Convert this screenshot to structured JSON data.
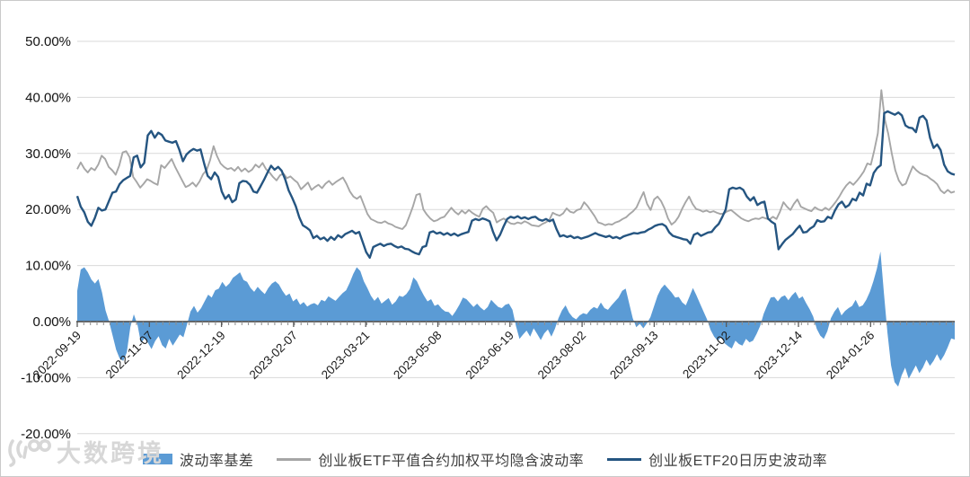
{
  "watermark": {
    "logo_text": "100",
    "text": "大数跨境"
  },
  "chart_data": {
    "type": "combo",
    "title": "",
    "unit": "percent",
    "grid": true,
    "legend_position": "bottom",
    "y_axis": {
      "ticks": [
        "50.00%",
        "40.00%",
        "30.00%",
        "20.00%",
        "10.00%",
        "0.00%",
        "-10.00%",
        "-20.00%"
      ],
      "values": [
        50,
        40,
        30,
        20,
        10,
        0,
        -10,
        -20
      ],
      "max": 50,
      "min": -20
    },
    "x_axis": {
      "tick_labels": [
        "2022-09-19",
        "2022-11-07",
        "2022-12-19",
        "2023-02-07",
        "2023-03-21",
        "2023-05-08",
        "2023-06-19",
        "2023-08-02",
        "2023-09-13",
        "2023-11-02",
        "2023-12-14",
        "2024-01-26"
      ]
    },
    "series": [
      {
        "name": "波动率基差",
        "type": "area",
        "color": "#5B9BD5",
        "values": [
          5.5,
          9.3,
          9.7,
          8.8,
          7.5,
          6.8,
          7.6,
          5.2,
          2.0,
          0.0,
          -2.5,
          -5.0,
          -6.6,
          -7.0,
          -5.5,
          -1.0,
          1.3,
          -0.5,
          -3.8,
          -3.0,
          -3.8,
          -4.9,
          -3.5,
          -2.6,
          -4.2,
          -4.8,
          -3.1,
          -4.3,
          -3.3,
          -2.3,
          -2.8,
          -0.6,
          1.8,
          2.8,
          1.6,
          2.4,
          3.6,
          4.8,
          4.3,
          5.6,
          5.9,
          7.1,
          6.2,
          6.8,
          7.8,
          8.3,
          8.8,
          7.4,
          7.1,
          6.0,
          5.3,
          6.2,
          5.5,
          4.9,
          6.0,
          6.8,
          7.2,
          6.6,
          5.5,
          4.6,
          5.0,
          3.6,
          4.1,
          3.0,
          3.5,
          2.7,
          3.1,
          3.3,
          2.9,
          3.9,
          3.6,
          4.5,
          4.1,
          3.7,
          4.4,
          5.1,
          5.6,
          6.9,
          8.5,
          9.7,
          9.0,
          7.2,
          6.0,
          4.6,
          3.7,
          4.4,
          3.2,
          3.7,
          4.2,
          3.0,
          3.6,
          4.6,
          4.4,
          4.9,
          5.8,
          7.9,
          7.2,
          5.8,
          4.6,
          3.6,
          4.0,
          2.8,
          3.1,
          2.3,
          1.8,
          1.7,
          1.0,
          1.9,
          3.0,
          4.3,
          4.0,
          3.3,
          2.6,
          3.2,
          2.5,
          2.0,
          2.6,
          3.9,
          3.2,
          2.6,
          2.4,
          3.0,
          3.2,
          2.1,
          -0.8,
          -3.1,
          -2.3,
          -1.6,
          -2.7,
          -1.2,
          -2.2,
          -3.3,
          -2.1,
          -1.4,
          -2.7,
          -1.3,
          0.6,
          2.0,
          2.9,
          1.6,
          0.8,
          0.4,
          1.1,
          1.5,
          1.3,
          2.1,
          2.6,
          2.3,
          3.4,
          2.4,
          2.1,
          2.9,
          3.6,
          4.3,
          5.5,
          5.9,
          3.2,
          0.6,
          -1.0,
          -0.4,
          -1.2,
          -0.3,
          0.8,
          2.7,
          4.6,
          5.9,
          6.6,
          5.9,
          5.2,
          4.3,
          4.4,
          3.4,
          2.9,
          4.4,
          6.0,
          4.7,
          3.2,
          1.8,
          0.4,
          -1.5,
          -2.7,
          -3.4,
          -2.8,
          -3.9,
          -4.4,
          -4.8,
          -3.4,
          -4.0,
          -4.3,
          -3.1,
          -3.7,
          -3.4,
          -2.2,
          -0.8,
          1.4,
          2.9,
          4.3,
          4.4,
          3.6,
          4.4,
          4.7,
          3.8,
          4.7,
          5.3,
          4.1,
          4.5,
          3.3,
          2.2,
          0.9,
          -1.3,
          -2.5,
          -3.1,
          -1.7,
          0.6,
          1.8,
          2.6,
          1.1,
          1.9,
          2.4,
          2.8,
          3.9,
          2.6,
          2.9,
          3.9,
          5.3,
          7.2,
          9.4,
          12.5,
          5.0,
          -2.0,
          -7.8,
          -10.8,
          -11.6,
          -9.6,
          -8.2,
          -10.2,
          -9.0,
          -7.8,
          -9.2,
          -8.2,
          -6.8,
          -7.9,
          -7.0,
          -5.8,
          -7.0,
          -6.0,
          -4.6,
          -3.0,
          -3.2
        ]
      },
      {
        "name": "创业板ETF平值合约加权平均隐含波动率",
        "type": "line",
        "color": "#A6A6A6",
        "values": [
          27.2,
          28.4,
          27.3,
          26.6,
          27.4,
          27.0,
          28.0,
          29.6,
          29.0,
          27.6,
          27.0,
          26.2,
          27.8,
          30.2,
          30.4,
          29.3,
          25.8,
          24.9,
          23.9,
          24.6,
          25.4,
          25.1,
          24.7,
          24.4,
          27.9,
          27.4,
          28.2,
          29.0,
          27.6,
          26.4,
          25.2,
          24.0,
          24.3,
          24.8,
          24.1,
          25.0,
          26.3,
          27.0,
          28.8,
          31.3,
          29.5,
          28.2,
          27.6,
          27.2,
          27.4,
          26.9,
          27.6,
          26.8,
          27.3,
          26.7,
          27.1,
          28.0,
          27.5,
          28.3,
          27.2,
          26.6,
          25.8,
          25.2,
          26.1,
          26.4,
          25.6,
          25.9,
          25.3,
          24.8,
          23.6,
          24.2,
          24.8,
          23.5,
          24.0,
          24.4,
          23.8,
          24.6,
          25.1,
          24.4,
          24.9,
          25.3,
          25.7,
          24.6,
          23.2,
          22.3,
          21.9,
          22.4,
          20.8,
          19.2,
          18.3,
          18.0,
          17.7,
          17.6,
          17.9,
          17.5,
          17.3,
          16.9,
          16.7,
          16.5,
          17.2,
          18.8,
          20.5,
          22.6,
          22.8,
          20.0,
          19.1,
          18.4,
          17.9,
          18.1,
          18.5,
          18.7,
          19.5,
          20.3,
          19.6,
          19.1,
          19.8,
          19.3,
          19.9,
          19.4,
          19.0,
          18.7,
          20.1,
          20.6,
          19.9,
          19.4,
          17.7,
          18.1,
          18.4,
          17.9,
          17.5,
          17.4,
          17.7,
          17.5,
          17.9,
          17.6,
          17.2,
          17.1,
          17.0,
          17.4,
          17.7,
          18.1,
          19.4,
          19.1,
          18.9,
          19.3,
          20.2,
          19.6,
          19.4,
          19.9,
          20.1,
          21.3,
          20.6,
          19.7,
          18.8,
          17.7,
          17.5,
          17.2,
          17.4,
          17.3,
          17.7,
          17.9,
          18.3,
          18.6,
          19.2,
          19.7,
          20.4,
          21.8,
          23.1,
          21.0,
          19.9,
          21.8,
          22.3,
          21.5,
          20.2,
          18.4,
          17.3,
          17.8,
          18.7,
          20.1,
          21.3,
          22.3,
          21.0,
          20.1,
          19.9,
          19.6,
          19.8,
          19.5,
          19.7,
          19.4,
          19.2,
          19.3,
          19.7,
          19.9,
          19.4,
          18.9,
          18.4,
          18.1,
          17.9,
          18.2,
          18.4,
          18.3,
          18.6,
          18.4,
          18.2,
          18.7,
          18.3,
          19.6,
          21.3,
          20.5,
          19.9,
          21.0,
          21.8,
          20.5,
          20.2,
          19.9,
          19.7,
          20.4,
          20.0,
          19.8,
          20.3,
          19.9,
          20.6,
          21.4,
          22.3,
          23.4,
          24.3,
          24.9,
          24.4,
          25.1,
          25.9,
          26.8,
          28.2,
          28.0,
          30.6,
          33.6,
          41.3,
          36.0,
          33.5,
          30.0,
          27.0,
          25.2,
          24.3,
          24.6,
          26.2,
          27.7,
          27.0,
          26.5,
          26.2,
          26.0,
          25.5,
          25.1,
          24.5,
          23.4,
          22.9,
          23.5,
          23.0,
          23.2
        ]
      },
      {
        "name": "创业板ETF20日历史波动率",
        "type": "line",
        "color": "#255581",
        "values": [
          22.4,
          20.5,
          19.5,
          17.8,
          17.1,
          18.5,
          20.3,
          19.8,
          20.0,
          21.5,
          23.0,
          23.2,
          24.5,
          25.2,
          25.6,
          26.0,
          29.3,
          29.6,
          27.5,
          28.3,
          33.2,
          34.0,
          32.8,
          33.7,
          33.3,
          32.3,
          32.1,
          31.9,
          32.2,
          30.6,
          28.6,
          29.8,
          30.4,
          30.8,
          30.5,
          30.7,
          28.2,
          26.0,
          25.4,
          26.6,
          25.8,
          23.2,
          21.9,
          22.6,
          21.3,
          21.8,
          24.7,
          25.1,
          25.0,
          24.4,
          23.2,
          23.0,
          24.1,
          25.3,
          26.6,
          27.8,
          27.1,
          27.6,
          26.9,
          25.4,
          23.4,
          22.1,
          20.6,
          18.6,
          17.2,
          16.8,
          16.3,
          14.9,
          15.3,
          14.7,
          15.0,
          14.4,
          15.1,
          14.6,
          15.4,
          15.0,
          15.6,
          15.9,
          16.2,
          15.7,
          16.0,
          14.2,
          12.4,
          11.4,
          13.3,
          13.6,
          13.9,
          13.5,
          13.8,
          13.9,
          13.5,
          13.2,
          13.4,
          13.0,
          12.9,
          12.5,
          12.2,
          12.0,
          13.3,
          13.5,
          15.9,
          16.1,
          15.7,
          15.9,
          15.5,
          15.8,
          15.4,
          15.7,
          15.3,
          15.6,
          15.8,
          16.0,
          18.0,
          18.3,
          18.1,
          18.4,
          18.2,
          17.9,
          16.0,
          14.5,
          15.5,
          17.0,
          18.3,
          18.7,
          18.5,
          18.8,
          18.4,
          18.6,
          18.3,
          18.6,
          18.7,
          18.2,
          18.0,
          18.3,
          17.9,
          18.2,
          16.5,
          15.2,
          15.4,
          15.1,
          15.3,
          14.9,
          15.1,
          14.8,
          15.0,
          15.2,
          15.5,
          15.8,
          15.5,
          15.3,
          15.1,
          15.3,
          14.9,
          15.1,
          14.8,
          15.2,
          15.4,
          15.6,
          15.8,
          15.7,
          15.9,
          16.0,
          16.4,
          16.7,
          17.1,
          17.3,
          17.4,
          17.0,
          15.9,
          15.3,
          15.1,
          14.9,
          14.7,
          14.6,
          13.9,
          15.5,
          15.8,
          15.3,
          15.6,
          15.9,
          16.0,
          16.8,
          17.4,
          18.6,
          20.0,
          23.6,
          23.9,
          23.7,
          23.9,
          23.5,
          22.3,
          21.6,
          22.2,
          20.8,
          21.2,
          21.4,
          18.4,
          17.8,
          17.4,
          12.9,
          13.8,
          14.6,
          15.1,
          15.6,
          16.4,
          17.1,
          15.9,
          16.0,
          16.6,
          17.0,
          18.1,
          17.8,
          17.9,
          18.7,
          18.4,
          19.8,
          20.9,
          21.4,
          20.4,
          20.8,
          21.9,
          21.6,
          23.0,
          22.5,
          24.6,
          24.3,
          26.5,
          27.4,
          27.9,
          37.2,
          37.5,
          37.2,
          36.9,
          37.3,
          36.8,
          35.0,
          34.6,
          34.5,
          33.8,
          36.4,
          36.7,
          35.9,
          32.8,
          31.0,
          31.6,
          30.6,
          28.0,
          26.8,
          26.4,
          26.2
        ]
      }
    ]
  }
}
